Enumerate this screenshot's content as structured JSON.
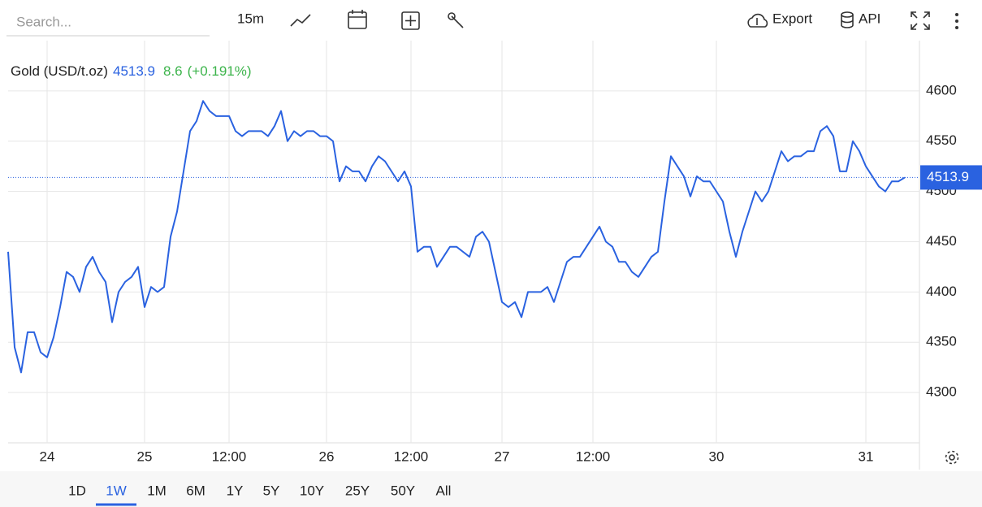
{
  "toolbar": {
    "search_placeholder": "Search...",
    "interval": "15m",
    "export": "Export",
    "api": "API"
  },
  "chart_data": {
    "type": "line",
    "series": [
      {
        "name": "Gold (USD/t.oz)",
        "color": "#2a62e0",
        "values": [
          4440,
          4345,
          4320,
          4360,
          4360,
          4340,
          4335,
          4355,
          4385,
          4420,
          4415,
          4400,
          4425,
          4435,
          4420,
          4410,
          4370,
          4400,
          4410,
          4415,
          4425,
          4385,
          4405,
          4400,
          4405,
          4455,
          4480,
          4520,
          4560,
          4570,
          4590,
          4580,
          4575,
          4575,
          4575,
          4560,
          4555,
          4560,
          4560,
          4560,
          4555,
          4565,
          4580,
          4550,
          4560,
          4555,
          4560,
          4560,
          4555,
          4555,
          4550,
          4510,
          4525,
          4520,
          4520,
          4510,
          4525,
          4535,
          4530,
          4520,
          4510,
          4520,
          4505,
          4440,
          4445,
          4445,
          4425,
          4435,
          4445,
          4445,
          4440,
          4435,
          4455,
          4460,
          4450,
          4420,
          4390,
          4385,
          4390,
          4375,
          4400,
          4400,
          4400,
          4405,
          4390,
          4410,
          4430,
          4435,
          4435,
          4445,
          4455,
          4465,
          4450,
          4445,
          4430,
          4430,
          4420,
          4415,
          4425,
          4435,
          4440,
          4490,
          4535,
          4525,
          4515,
          4495,
          4515,
          4510,
          4510,
          4500,
          4490,
          4460,
          4435,
          4460,
          4480,
          4500,
          4490,
          4500,
          4520,
          4540,
          4530,
          4535,
          4535,
          4540,
          4540,
          4560,
          4565,
          4555,
          4520,
          4520,
          4550,
          4540,
          4525,
          4515,
          4505,
          4500,
          4510,
          4510,
          4513.9
        ]
      }
    ],
    "categories": [
      null,
      null,
      null,
      null,
      null,
      null,
      "24",
      null,
      null,
      null,
      null,
      null,
      null,
      null,
      null,
      null,
      null,
      null,
      null,
      null,
      null,
      "25",
      null,
      null,
      null,
      null,
      null,
      null,
      null,
      null,
      null,
      null,
      null,
      null,
      "12:00",
      null,
      null,
      null,
      null,
      null,
      null,
      null,
      null,
      null,
      null,
      null,
      null,
      null,
      null,
      "26",
      null,
      null,
      null,
      null,
      null,
      null,
      null,
      null,
      null,
      null,
      null,
      null,
      "12:00",
      null,
      null,
      null,
      null,
      null,
      null,
      null,
      null,
      null,
      null,
      null,
      null,
      null,
      "27",
      null,
      null,
      null,
      null,
      null,
      null,
      null,
      null,
      null,
      null,
      null,
      null,
      null,
      "12:00",
      null,
      null,
      null,
      null,
      null,
      null,
      null,
      null,
      null,
      null,
      null,
      null,
      null,
      null,
      null,
      null,
      null,
      null,
      "30",
      null,
      null,
      null,
      null,
      null,
      null,
      null,
      null,
      null,
      null,
      null,
      null,
      null,
      null,
      null,
      null,
      null,
      null,
      null,
      null,
      null,
      null,
      "31",
      null,
      null,
      null,
      null,
      null,
      null
    ],
    "last_price": 4513.9,
    "change": 8.6,
    "change_pct": "(+0.191%)",
    "change_color": "#3cb44b",
    "ylim": [
      4250,
      4650
    ],
    "yticks": [
      4300,
      4350,
      4400,
      4450,
      4500,
      4550,
      4600
    ],
    "grid": true
  },
  "ranges": {
    "items": [
      "1D",
      "1W",
      "1M",
      "6M",
      "1Y",
      "5Y",
      "10Y",
      "25Y",
      "50Y",
      "All"
    ],
    "selected": 1
  }
}
